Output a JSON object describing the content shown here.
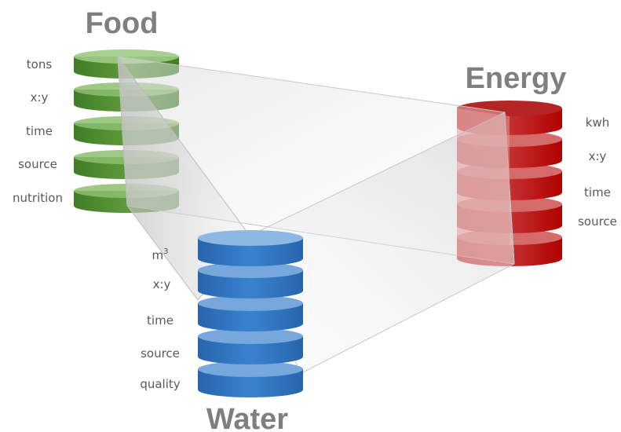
{
  "food": {
    "title": "Food",
    "fields": [
      "tons",
      "x:y",
      "time",
      "source",
      "nutrition"
    ],
    "color": "#4a8a2e"
  },
  "water": {
    "title": "Water",
    "unit_base": "m",
    "unit_exp": "3",
    "fields": [
      "x:y",
      "time",
      "source",
      "quality"
    ],
    "color": "#2e74c0"
  },
  "energy": {
    "title": "Energy",
    "fields": [
      "kwh",
      "x:y",
      "time",
      "source"
    ],
    "color": "#c00000"
  }
}
